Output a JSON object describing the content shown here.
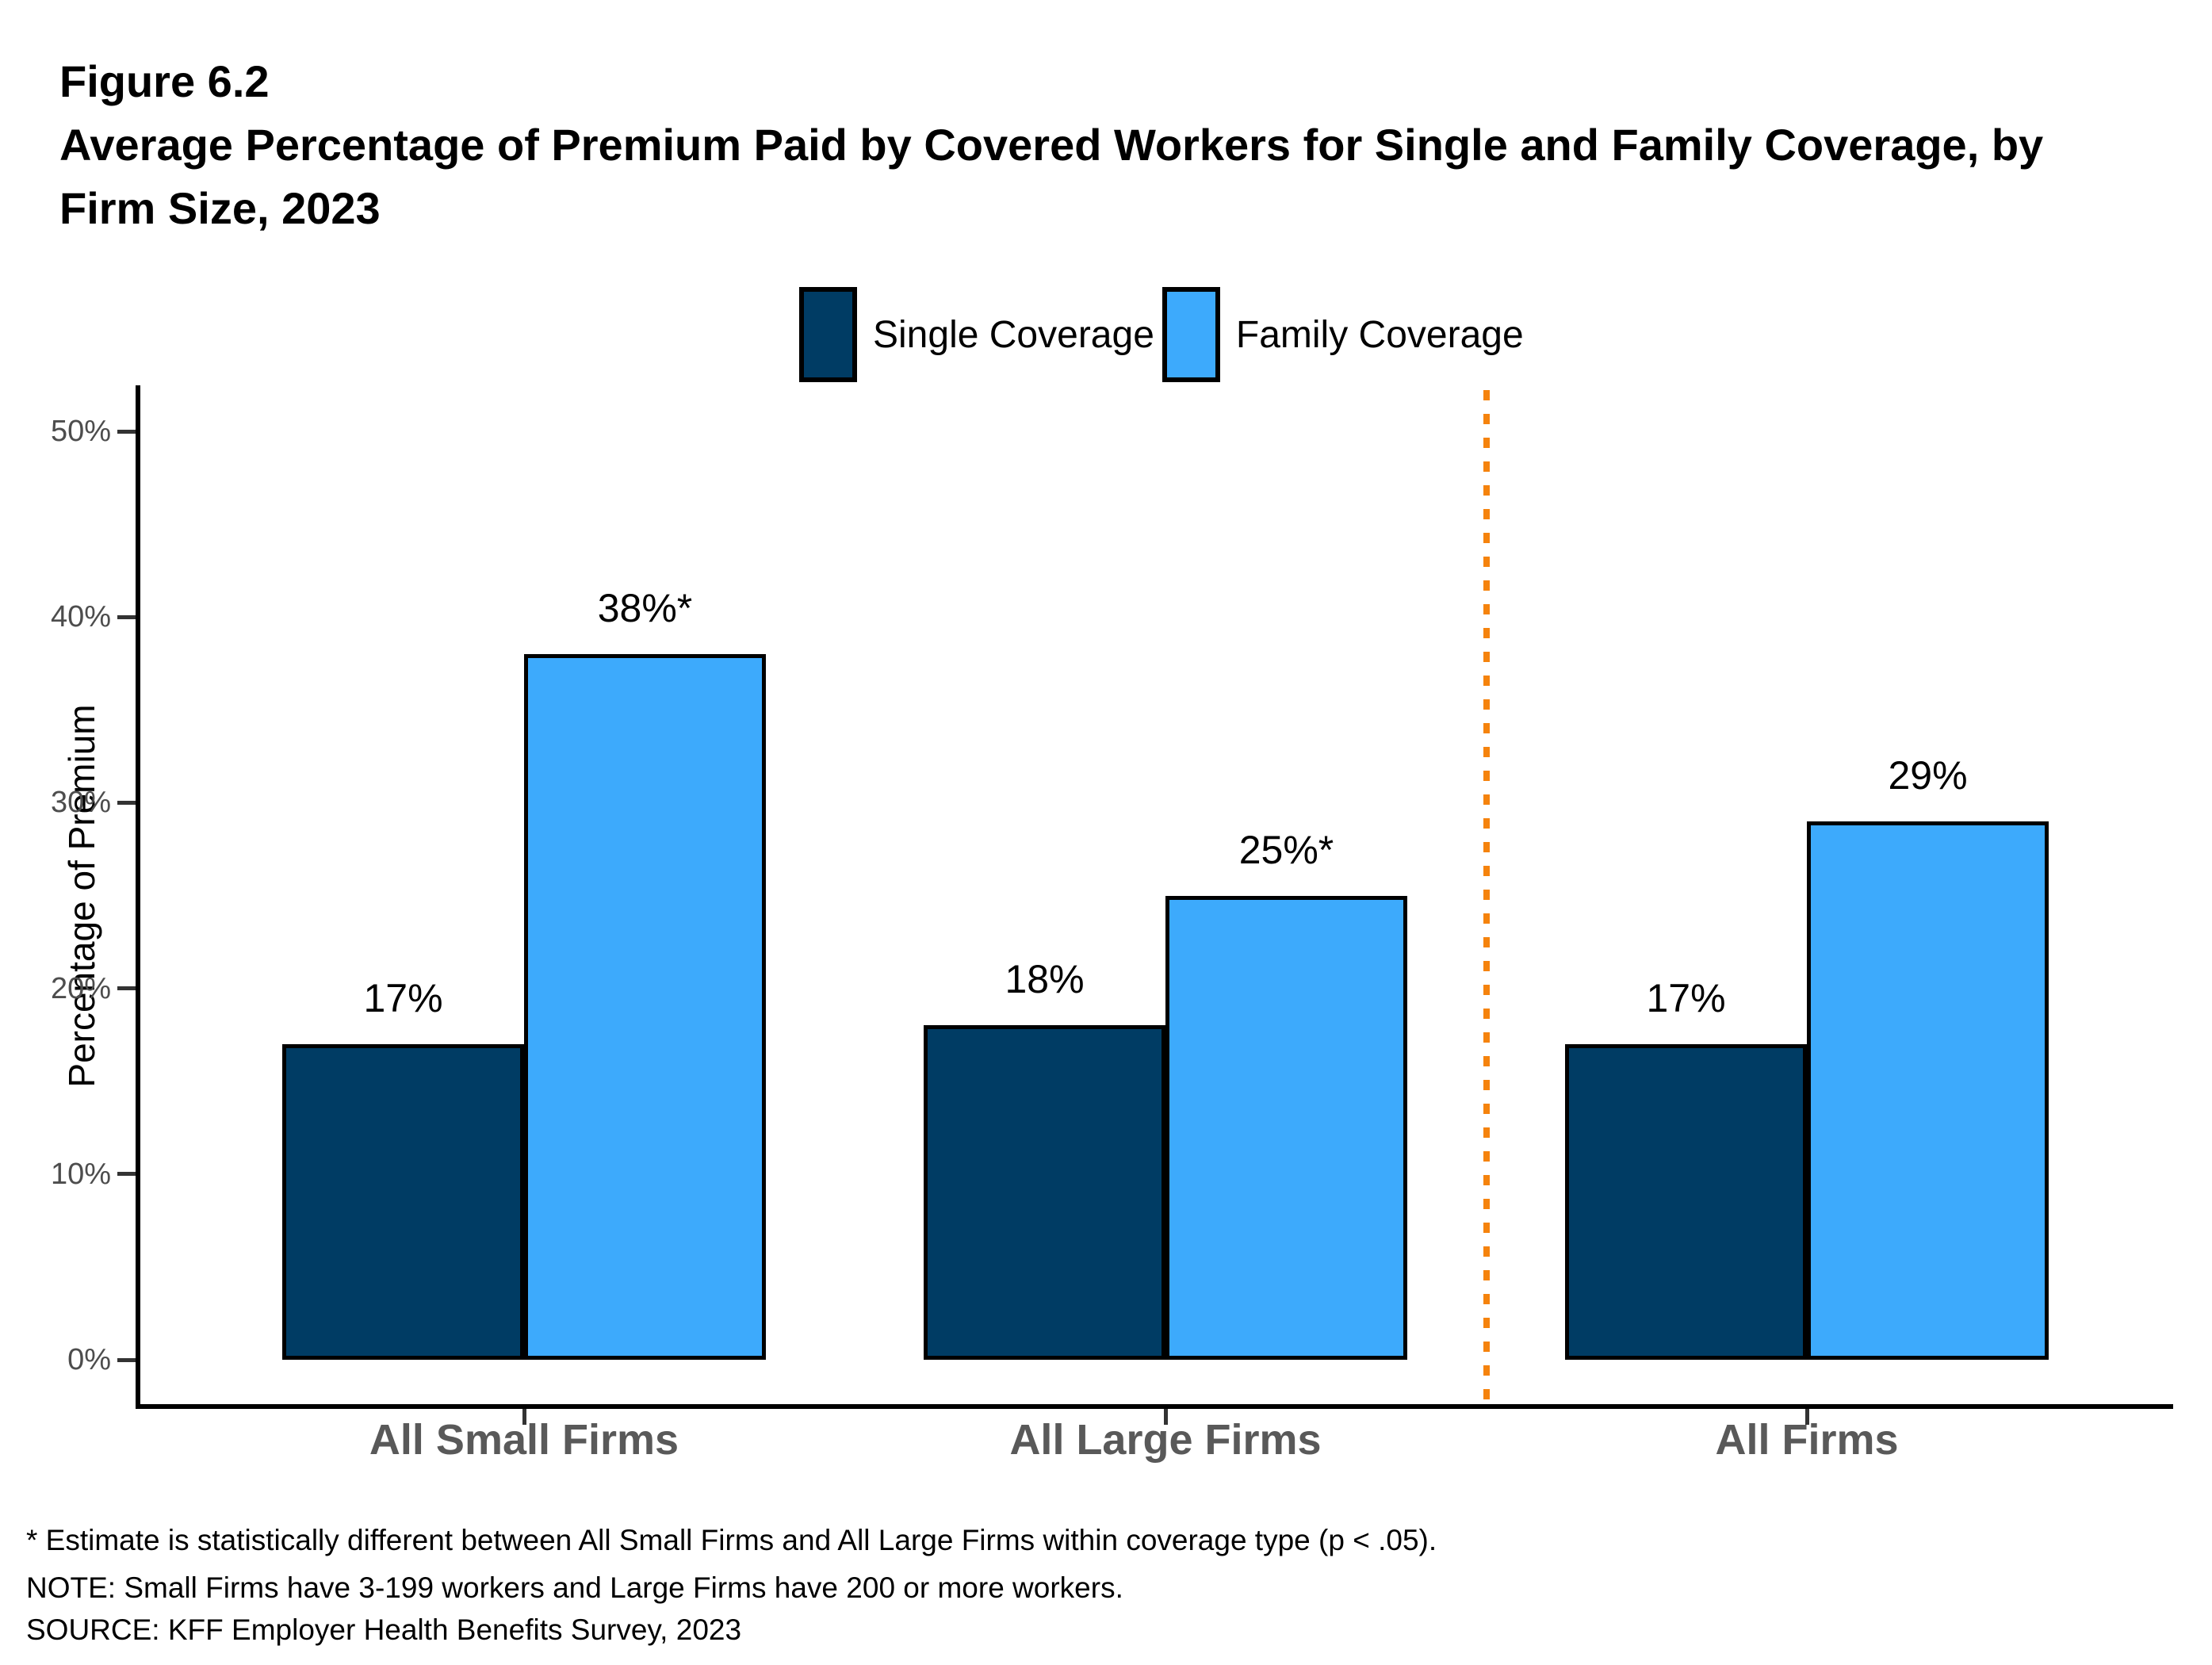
{
  "header": {
    "figure_label": "Figure 6.2",
    "title_line1": "Average Percentage of Premium Paid by Covered Workers for Single and Family Coverage, by",
    "title_line2": "Firm Size, 2023"
  },
  "legend": {
    "items": [
      {
        "label": "Single Coverage",
        "color": "#003C64"
      },
      {
        "label": "Family Coverage",
        "color": "#3DAAFC"
      }
    ]
  },
  "y_axis_title": "Percentage of Premium",
  "chart_data": {
    "type": "bar",
    "title": "Average Percentage of Premium Paid by Covered Workers for Single and Family Coverage, by Firm Size, 2023",
    "categories": [
      "All Small Firms",
      "All Large Firms",
      "All Firms"
    ],
    "series": [
      {
        "name": "Single Coverage",
        "color": "#003C64",
        "values": [
          17,
          18,
          17
        ],
        "labels": [
          "17%",
          "18%",
          "17%"
        ]
      },
      {
        "name": "Family Coverage",
        "color": "#3DAAFC",
        "values": [
          38,
          25,
          29
        ],
        "labels": [
          "38%*",
          "25%*",
          "29%"
        ]
      }
    ],
    "xlabel": "",
    "ylabel": "Percentage of Premium",
    "ylim": [
      0,
      52
    ],
    "yticks": [
      {
        "label": "0%",
        "value": 0
      },
      {
        "label": "10%",
        "value": 10
      },
      {
        "label": "20%",
        "value": 20
      },
      {
        "label": "30%",
        "value": 30
      },
      {
        "label": "40%",
        "value": 40
      },
      {
        "label": "50%",
        "value": 50
      }
    ],
    "grid": false,
    "legend_position": "top",
    "separator": {
      "after_category": "All Large Firms",
      "color": "#F5830D",
      "style": "dashed"
    }
  },
  "footnotes": {
    "asterisk": "* Estimate is statistically different between All Small Firms and All Large Firms within coverage type (p < .05).",
    "note": "NOTE: Small Firms have 3-199 workers and Large Firms have 200 or more workers.",
    "source": "SOURCE: KFF Employer Health Benefits Survey, 2023"
  }
}
